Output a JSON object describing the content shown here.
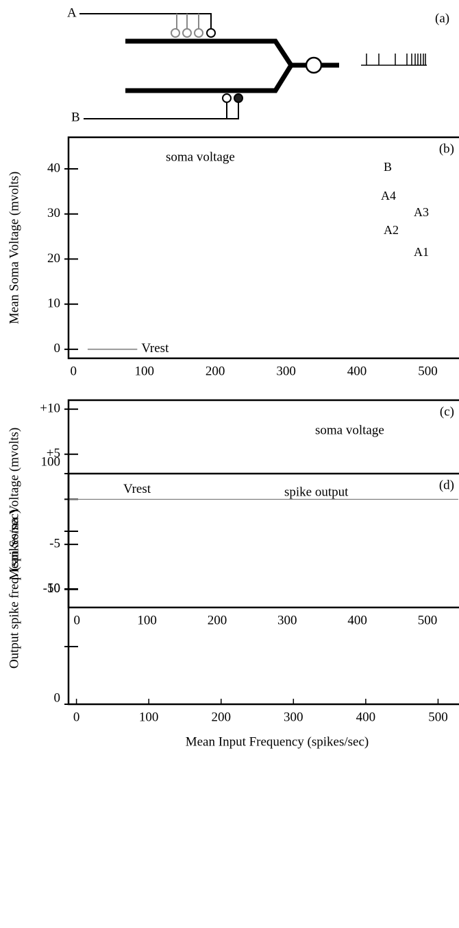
{
  "diagram": {
    "label": "(a)",
    "input_a": "A",
    "input_b": "B"
  },
  "chart_data": [
    {
      "type": "line",
      "label": "(b)",
      "ylabel": "Mean Soma Voltage (mvolts)",
      "xlim": [
        -7,
        543
      ],
      "xticks": [
        0,
        100,
        200,
        300,
        400,
        500
      ],
      "ylim": [
        -2,
        47
      ],
      "yticks": [
        0,
        10,
        20,
        30,
        40
      ],
      "annotations": [
        "soma voltage",
        "B",
        "A4",
        "A3",
        "A2",
        "A1"
      ],
      "series": [
        {
          "name": "Vrest",
          "color": "#999999",
          "x": [
            20,
            90
          ],
          "values": [
            0,
            0
          ]
        }
      ]
    },
    {
      "type": "line",
      "label": "(c)",
      "ylabel": "Mean Soma Voltage (mvolts)",
      "xlim": [
        -12,
        544
      ],
      "xticks": [
        0,
        100,
        200,
        300,
        400,
        500
      ],
      "ylim": [
        -12,
        11
      ],
      "yticks": [
        {
          "value": 10,
          "label": "+10"
        },
        {
          "value": 5,
          "label": "+5"
        },
        {
          "value": 0,
          "label": null
        },
        -5,
        -10
      ],
      "annotations": [
        "soma voltage"
      ],
      "series": [
        {
          "name": "Vrest",
          "color": "#777777",
          "x": [
            -12,
            544
          ],
          "values": [
            0,
            0
          ]
        }
      ]
    },
    {
      "type": "line",
      "label": "(d)",
      "ylabel": "Output spike freq. (spikes/sec)",
      "xlabel": "Mean Input Frequency (spikes/sec)",
      "xlim": [
        -11,
        528
      ],
      "xticks": [
        0,
        100,
        200,
        300,
        400,
        500
      ],
      "ylim": [
        0,
        100
      ],
      "yticks": [
        0,
        {
          "value": 25,
          "label": null
        },
        50,
        {
          "value": 75,
          "label": null
        },
        100
      ],
      "annotations": [
        "spike output"
      ],
      "series": []
    }
  ]
}
